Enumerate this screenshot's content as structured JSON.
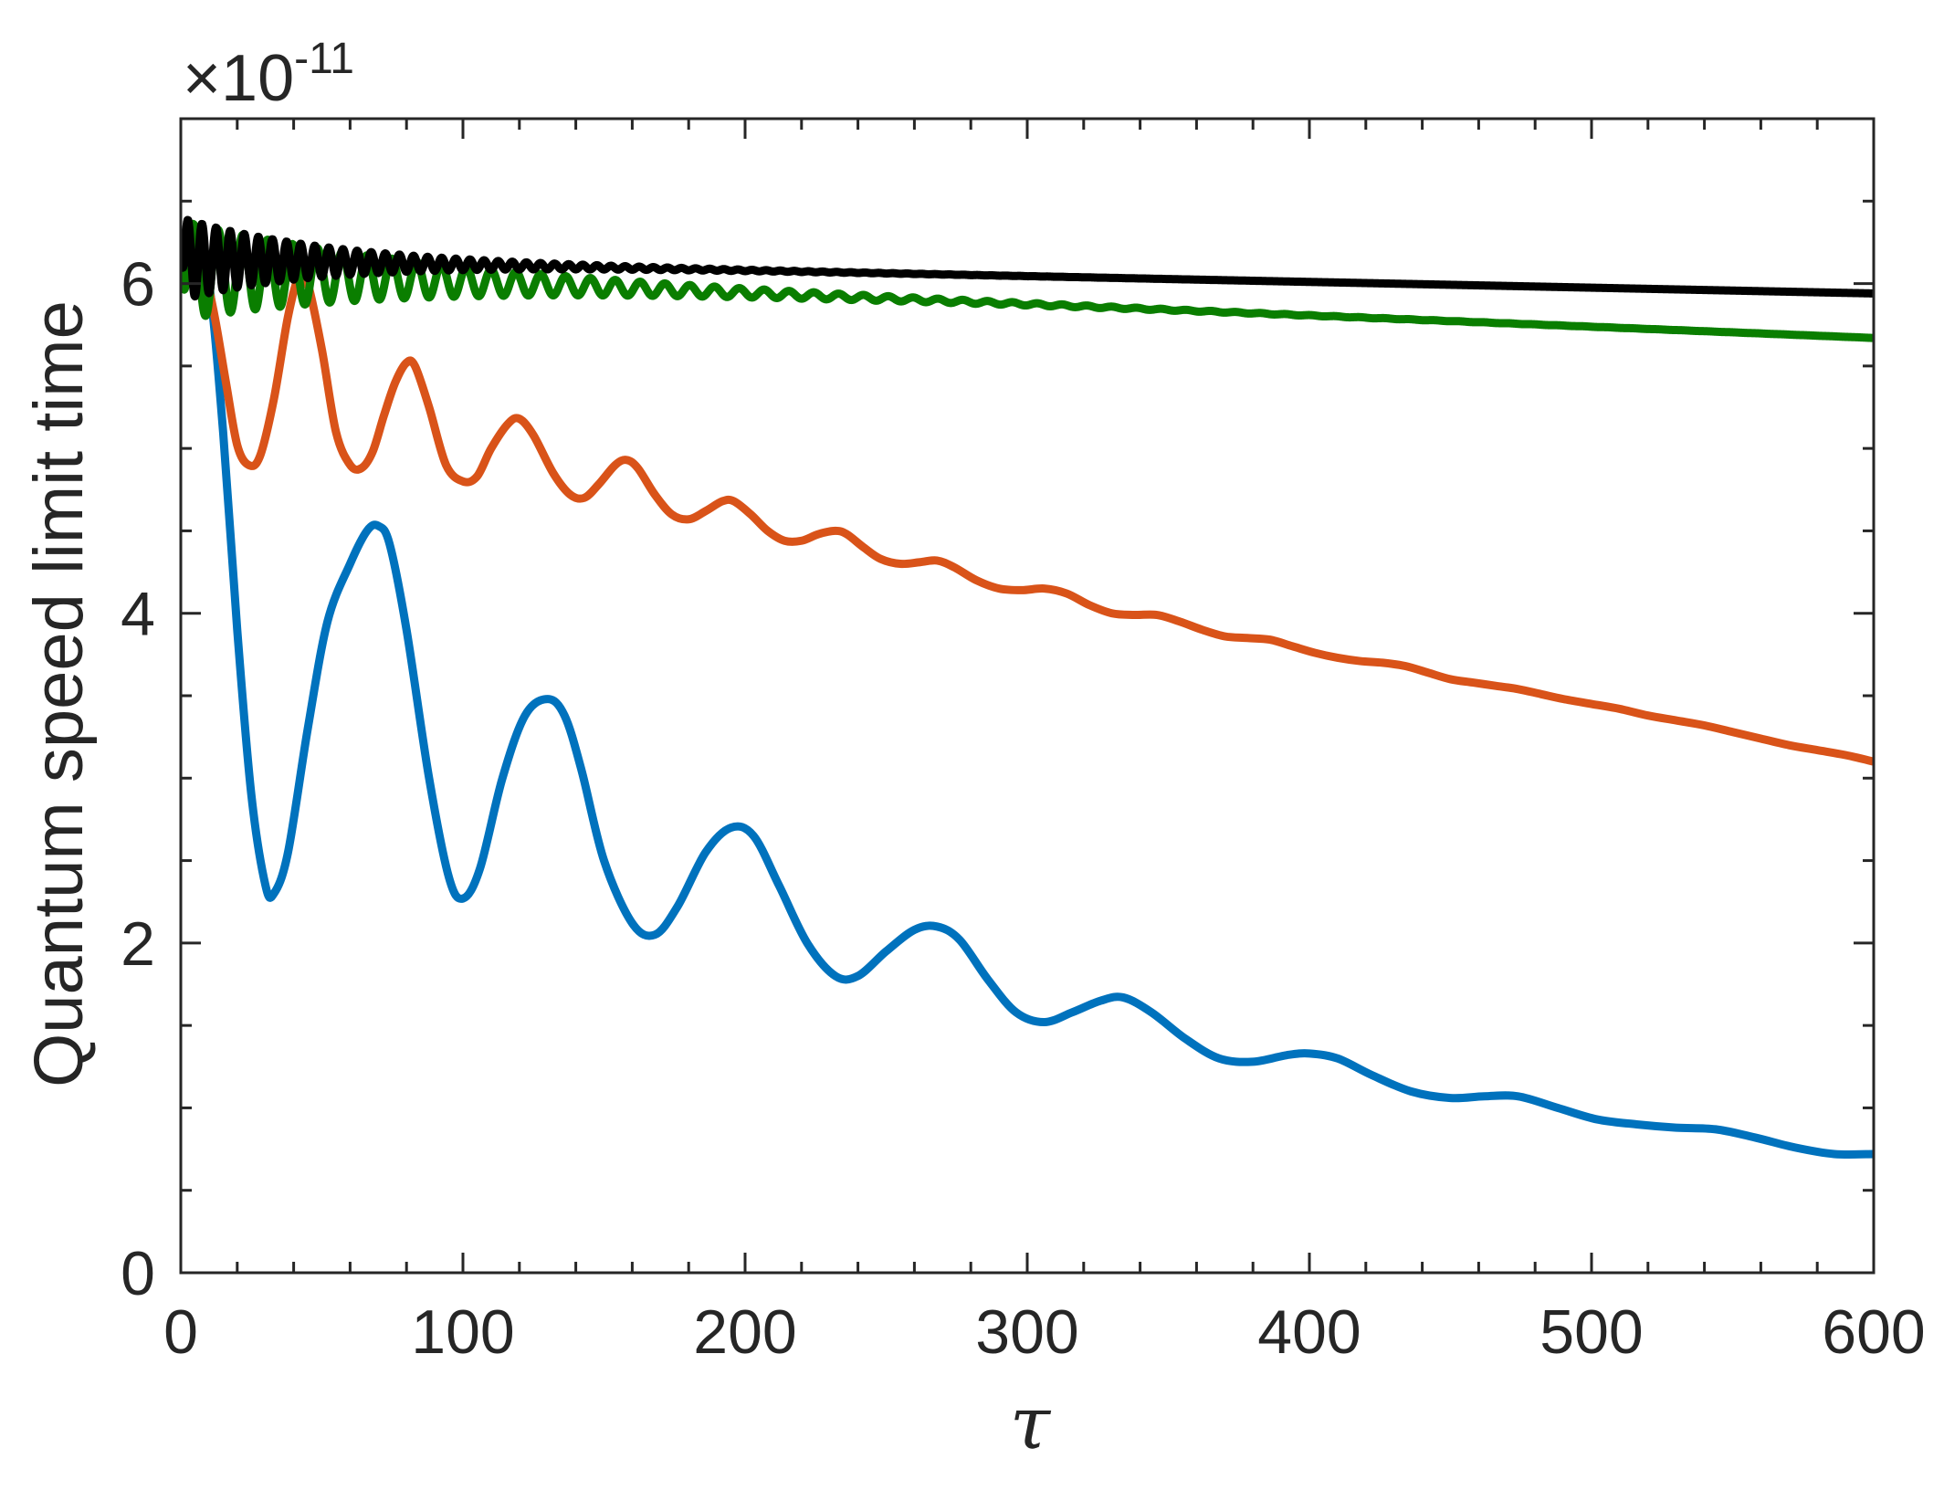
{
  "chart_data": {
    "type": "line",
    "title": "",
    "xlabel": "τ",
    "ylabel": "Quantum speed limit time",
    "y_multiplier": {
      "prefix": "×10",
      "exponent": "-11"
    },
    "xlim": [
      0,
      600
    ],
    "ylim": [
      0,
      7
    ],
    "x_major_ticks": [
      0,
      100,
      200,
      300,
      400,
      500,
      600
    ],
    "x_tick_labels": [
      "0",
      "100",
      "200",
      "300",
      "400",
      "500",
      "600"
    ],
    "x_minor_step": 20,
    "y_major_ticks": [
      0,
      2,
      4,
      6
    ],
    "y_tick_labels": [
      "0",
      "2",
      "4",
      "6"
    ],
    "y_minor_step": 0.5,
    "grid": false,
    "legend": "none",
    "series": [
      {
        "name": "blue",
        "color": "#0072BD",
        "points": [
          [
            0,
            6.2
          ],
          [
            5,
            6.2
          ],
          [
            10,
            6.0
          ],
          [
            15,
            5.1
          ],
          [
            20,
            3.9
          ],
          [
            25,
            2.9
          ],
          [
            30,
            2.35
          ],
          [
            33,
            2.3
          ],
          [
            38,
            2.55
          ],
          [
            45,
            3.3
          ],
          [
            52,
            3.95
          ],
          [
            60,
            4.3
          ],
          [
            66,
            4.5
          ],
          [
            70,
            4.53
          ],
          [
            74,
            4.42
          ],
          [
            80,
            3.9
          ],
          [
            88,
            3.0
          ],
          [
            95,
            2.4
          ],
          [
            100,
            2.27
          ],
          [
            106,
            2.45
          ],
          [
            114,
            3.0
          ],
          [
            122,
            3.38
          ],
          [
            130,
            3.48
          ],
          [
            136,
            3.38
          ],
          [
            142,
            3.05
          ],
          [
            150,
            2.5
          ],
          [
            160,
            2.12
          ],
          [
            168,
            2.05
          ],
          [
            176,
            2.22
          ],
          [
            186,
            2.55
          ],
          [
            195,
            2.7
          ],
          [
            203,
            2.65
          ],
          [
            212,
            2.35
          ],
          [
            222,
            2.0
          ],
          [
            232,
            1.8
          ],
          [
            240,
            1.8
          ],
          [
            250,
            1.95
          ],
          [
            260,
            2.08
          ],
          [
            268,
            2.1
          ],
          [
            276,
            2.02
          ],
          [
            286,
            1.78
          ],
          [
            296,
            1.58
          ],
          [
            306,
            1.52
          ],
          [
            316,
            1.58
          ],
          [
            326,
            1.65
          ],
          [
            334,
            1.67
          ],
          [
            344,
            1.58
          ],
          [
            356,
            1.42
          ],
          [
            368,
            1.3
          ],
          [
            380,
            1.28
          ],
          [
            392,
            1.32
          ],
          [
            400,
            1.33
          ],
          [
            410,
            1.3
          ],
          [
            422,
            1.2
          ],
          [
            436,
            1.1
          ],
          [
            450,
            1.06
          ],
          [
            462,
            1.07
          ],
          [
            474,
            1.07
          ],
          [
            488,
            1.0
          ],
          [
            502,
            0.93
          ],
          [
            516,
            0.9
          ],
          [
            530,
            0.88
          ],
          [
            544,
            0.87
          ],
          [
            558,
            0.82
          ],
          [
            572,
            0.76
          ],
          [
            586,
            0.72
          ],
          [
            600,
            0.72
          ]
        ]
      },
      {
        "name": "orange",
        "color": "#D95319",
        "points": [
          [
            0,
            6.2
          ],
          [
            4,
            6.2
          ],
          [
            8,
            6.1
          ],
          [
            12,
            5.8
          ],
          [
            16,
            5.4
          ],
          [
            20,
            5.02
          ],
          [
            24,
            4.9
          ],
          [
            28,
            4.95
          ],
          [
            33,
            5.3
          ],
          [
            38,
            5.8
          ],
          [
            42,
            6.05
          ],
          [
            45,
            6.0
          ],
          [
            50,
            5.6
          ],
          [
            55,
            5.1
          ],
          [
            60,
            4.9
          ],
          [
            64,
            4.88
          ],
          [
            68,
            4.98
          ],
          [
            72,
            5.2
          ],
          [
            76,
            5.4
          ],
          [
            80,
            5.52
          ],
          [
            83,
            5.5
          ],
          [
            88,
            5.25
          ],
          [
            94,
            4.9
          ],
          [
            100,
            4.8
          ],
          [
            105,
            4.83
          ],
          [
            110,
            5.0
          ],
          [
            116,
            5.15
          ],
          [
            120,
            5.18
          ],
          [
            125,
            5.08
          ],
          [
            132,
            4.85
          ],
          [
            138,
            4.72
          ],
          [
            143,
            4.7
          ],
          [
            148,
            4.78
          ],
          [
            154,
            4.9
          ],
          [
            158,
            4.93
          ],
          [
            162,
            4.88
          ],
          [
            168,
            4.72
          ],
          [
            174,
            4.6
          ],
          [
            180,
            4.57
          ],
          [
            186,
            4.62
          ],
          [
            192,
            4.68
          ],
          [
            196,
            4.68
          ],
          [
            202,
            4.6
          ],
          [
            208,
            4.5
          ],
          [
            214,
            4.44
          ],
          [
            220,
            4.44
          ],
          [
            226,
            4.48
          ],
          [
            232,
            4.5
          ],
          [
            236,
            4.48
          ],
          [
            242,
            4.4
          ],
          [
            248,
            4.33
          ],
          [
            255,
            4.3
          ],
          [
            262,
            4.31
          ],
          [
            268,
            4.32
          ],
          [
            274,
            4.28
          ],
          [
            282,
            4.2
          ],
          [
            290,
            4.15
          ],
          [
            298,
            4.14
          ],
          [
            306,
            4.15
          ],
          [
            314,
            4.12
          ],
          [
            322,
            4.05
          ],
          [
            330,
            4.0
          ],
          [
            338,
            3.99
          ],
          [
            346,
            3.99
          ],
          [
            354,
            3.95
          ],
          [
            362,
            3.9
          ],
          [
            370,
            3.86
          ],
          [
            378,
            3.85
          ],
          [
            386,
            3.84
          ],
          [
            394,
            3.8
          ],
          [
            402,
            3.76
          ],
          [
            410,
            3.73
          ],
          [
            418,
            3.71
          ],
          [
            426,
            3.7
          ],
          [
            434,
            3.68
          ],
          [
            442,
            3.64
          ],
          [
            450,
            3.6
          ],
          [
            458,
            3.58
          ],
          [
            466,
            3.56
          ],
          [
            474,
            3.54
          ],
          [
            482,
            3.51
          ],
          [
            490,
            3.48
          ],
          [
            500,
            3.45
          ],
          [
            510,
            3.42
          ],
          [
            520,
            3.38
          ],
          [
            530,
            3.35
          ],
          [
            540,
            3.32
          ],
          [
            550,
            3.28
          ],
          [
            560,
            3.24
          ],
          [
            570,
            3.2
          ],
          [
            580,
            3.17
          ],
          [
            590,
            3.14
          ],
          [
            600,
            3.1
          ]
        ]
      }
    ],
    "oscillating_series": [
      {
        "name": "green",
        "color": "#0A7E00",
        "base_start": 6.08,
        "base_end": 5.67,
        "amplitude_start": 0.3,
        "amplitude_decay": 0.012,
        "period": 8.8,
        "x_max": 600
      },
      {
        "name": "black",
        "color": "#000000",
        "base_start": 6.15,
        "base_end": 5.94,
        "amplitude_start": 0.25,
        "amplitude_decay": 0.02,
        "period": 5.0,
        "x_max": 600
      }
    ]
  }
}
